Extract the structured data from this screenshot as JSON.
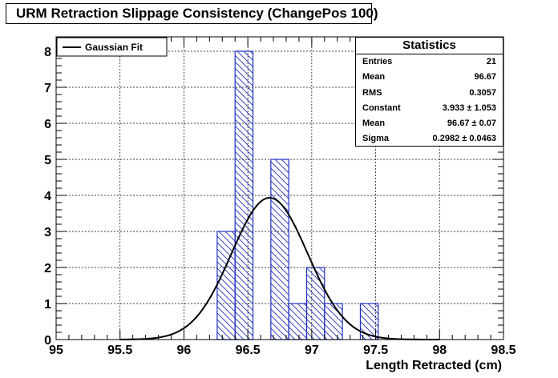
{
  "title": "URM Retraction Slippage Consistency (ChangePos 100)",
  "chart_data": {
    "type": "bar",
    "xlabel": "Length Retracted (cm)",
    "ylabel": "",
    "xlim": [
      95,
      98.5
    ],
    "ylim": [
      0,
      8.4
    ],
    "x_ticks": [
      "95",
      "95.5",
      "96",
      "96.5",
      "97",
      "97.5",
      "98",
      "98.5"
    ],
    "y_ticks": [
      "0",
      "1",
      "2",
      "3",
      "4",
      "5",
      "6",
      "7",
      "8"
    ],
    "bin_width": 0.14,
    "bins": [
      {
        "x0": 96.26,
        "x1": 96.4,
        "count": 3
      },
      {
        "x0": 96.4,
        "x1": 96.54,
        "count": 8
      },
      {
        "x0": 96.54,
        "x1": 96.68,
        "count": 0
      },
      {
        "x0": 96.68,
        "x1": 96.82,
        "count": 5
      },
      {
        "x0": 96.82,
        "x1": 96.96,
        "count": 1
      },
      {
        "x0": 96.96,
        "x1": 97.1,
        "count": 2
      },
      {
        "x0": 97.1,
        "x1": 97.24,
        "count": 1
      },
      {
        "x0": 97.24,
        "x1": 97.38,
        "count": 0
      },
      {
        "x0": 97.38,
        "x1": 97.52,
        "count": 1
      }
    ],
    "fit": {
      "name": "Gaussian Fit",
      "constant": 3.933,
      "mean": 96.67,
      "sigma": 0.2982
    },
    "grid": true,
    "legend": {
      "position": "top-left",
      "entries": [
        "Gaussian Fit"
      ]
    },
    "colors": {
      "histogram": "#1f2fbf",
      "fit": "#000000",
      "grid": "#000000"
    }
  },
  "stats": {
    "title": "Statistics",
    "rows": [
      {
        "name": "Entries",
        "value": "21"
      },
      {
        "name": "Mean",
        "value": "96.67"
      },
      {
        "name": "RMS",
        "value": "0.3057"
      },
      {
        "name": "Constant",
        "value": "3.933 ± 1.053"
      },
      {
        "name": "Mean",
        "value": "96.67 ± 0.07"
      },
      {
        "name": "Sigma",
        "value": "0.2982 ± 0.0463"
      }
    ]
  }
}
